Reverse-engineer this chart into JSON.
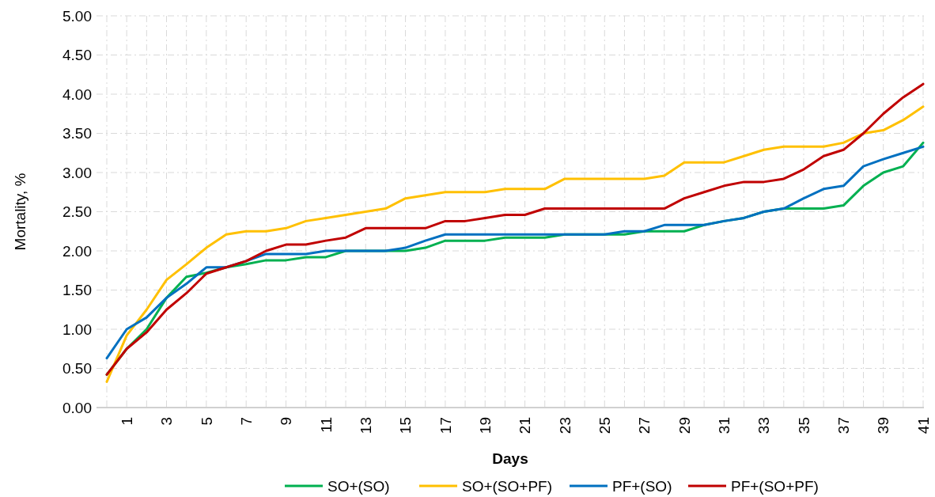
{
  "chart_data": {
    "type": "line",
    "xlabel": "Days",
    "ylabel": "Mortality, %",
    "categories": [
      null,
      "1",
      null,
      "3",
      null,
      "5",
      null,
      "7",
      null,
      "9",
      null,
      "11",
      null,
      "13",
      null,
      "15",
      null,
      "17",
      null,
      "19",
      null,
      "21",
      null,
      "23",
      null,
      "25",
      null,
      "27",
      null,
      "29",
      null,
      "31",
      null,
      "33",
      null,
      "35",
      null,
      "37",
      null,
      "39",
      null,
      "41"
    ],
    "ylim": [
      0,
      5
    ],
    "yticks": [
      {
        "value": 0,
        "label": "0.00"
      },
      {
        "value": 0.5,
        "label": "0.50"
      },
      {
        "value": 1,
        "label": "1.00"
      },
      {
        "value": 1.5,
        "label": "1.50"
      },
      {
        "value": 2,
        "label": "2.00"
      },
      {
        "value": 2.5,
        "label": "2.50"
      },
      {
        "value": 3,
        "label": "3.00"
      },
      {
        "value": 3.5,
        "label": "3.50"
      },
      {
        "value": 4,
        "label": "4.00"
      },
      {
        "value": 4.5,
        "label": "4.50"
      },
      {
        "value": 5,
        "label": "5.00"
      }
    ],
    "grid": true,
    "legend": "bottom",
    "line_style": "solid",
    "series": [
      {
        "name": "SO+(SO)",
        "color": "#00b050",
        "values": [
          0.42,
          0.75,
          1.0,
          1.4,
          1.67,
          1.72,
          1.79,
          1.83,
          1.88,
          1.88,
          1.92,
          1.92,
          2.0,
          2.0,
          2.0,
          2.0,
          2.04,
          2.13,
          2.13,
          2.13,
          2.17,
          2.17,
          2.17,
          2.21,
          2.21,
          2.21,
          2.21,
          2.25,
          2.25,
          2.25,
          2.33,
          2.38,
          2.42,
          2.5,
          2.54,
          2.54,
          2.54,
          2.58,
          2.83,
          3.0,
          3.08,
          3.38
        ]
      },
      {
        "name": "SO+(SO+PF)",
        "color": "#ffc000",
        "values": [
          0.33,
          0.92,
          1.25,
          1.63,
          1.83,
          2.04,
          2.21,
          2.25,
          2.25,
          2.29,
          2.38,
          2.42,
          2.46,
          2.5,
          2.54,
          2.67,
          2.71,
          2.75,
          2.75,
          2.75,
          2.79,
          2.79,
          2.79,
          2.92,
          2.92,
          2.92,
          2.92,
          2.92,
          2.96,
          3.13,
          3.13,
          3.13,
          3.21,
          3.29,
          3.33,
          3.33,
          3.33,
          3.38,
          3.5,
          3.54,
          3.67,
          3.84
        ]
      },
      {
        "name": "PF+(SO)",
        "color": "#0070c0",
        "values": [
          0.63,
          1.0,
          1.15,
          1.4,
          1.58,
          1.79,
          1.79,
          1.87,
          1.96,
          1.96,
          1.96,
          2.0,
          2.0,
          2.0,
          2.0,
          2.04,
          2.13,
          2.21,
          2.21,
          2.21,
          2.21,
          2.21,
          2.21,
          2.21,
          2.21,
          2.21,
          2.25,
          2.25,
          2.33,
          2.33,
          2.33,
          2.38,
          2.42,
          2.5,
          2.54,
          2.67,
          2.79,
          2.83,
          3.08,
          3.17,
          3.25,
          3.33
        ]
      },
      {
        "name": "PF+(SO+PF)",
        "color": "#c00000",
        "values": [
          0.42,
          0.75,
          0.96,
          1.25,
          1.46,
          1.71,
          1.79,
          1.87,
          2.0,
          2.08,
          2.08,
          2.13,
          2.17,
          2.29,
          2.29,
          2.29,
          2.29,
          2.38,
          2.38,
          2.42,
          2.46,
          2.46,
          2.54,
          2.54,
          2.54,
          2.54,
          2.54,
          2.54,
          2.54,
          2.67,
          2.75,
          2.83,
          2.88,
          2.88,
          2.92,
          3.04,
          3.21,
          3.29,
          3.5,
          3.75,
          3.96,
          4.13
        ]
      }
    ]
  }
}
